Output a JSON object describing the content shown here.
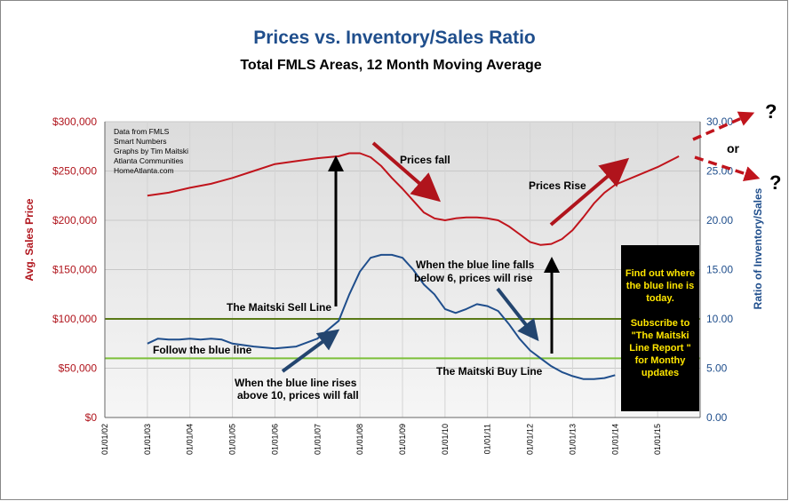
{
  "chart_data": {
    "type": "line",
    "title": "Prices vs. Inventory/Sales Ratio",
    "subtitle": "Total FMLS Areas,  12 Month Moving Average",
    "ylabel_left": "Avg. Sales Price",
    "ylabel_right": "Ratio of Inventory/Sales",
    "ylim_left": [
      0,
      300000
    ],
    "ylim_right": [
      0,
      30
    ],
    "left_ticks": [
      "$0",
      "$50,000",
      "$100,000",
      "$150,000",
      "$200,000",
      "$250,000",
      "$300,000"
    ],
    "right_ticks": [
      "0.00",
      "5.00",
      "10.00",
      "15.00",
      "20.00",
      "25.00",
      "30.00"
    ],
    "x_ticks": [
      "01/01/02",
      "01/01/03",
      "01/01/04",
      "01/01/05",
      "01/01/06",
      "01/01/07",
      "01/01/08",
      "01/01/09",
      "01/01/10",
      "01/01/11",
      "01/01/12",
      "01/01/13",
      "01/01/14",
      "01/01/15"
    ],
    "series": [
      {
        "name": "Avg. Sales Price",
        "axis": "left",
        "color": "#c0141c",
        "x": [
          2003.0,
          2003.5,
          2004.0,
          2004.5,
          2005.0,
          2005.5,
          2006.0,
          2006.5,
          2007.0,
          2007.5,
          2007.75,
          2008.0,
          2008.25,
          2008.5,
          2008.75,
          2009.0,
          2009.25,
          2009.5,
          2009.75,
          2010.0,
          2010.25,
          2010.5,
          2010.75,
          2011.0,
          2011.25,
          2011.5,
          2011.75,
          2012.0,
          2012.25,
          2012.5,
          2012.75,
          2013.0,
          2013.25,
          2013.5,
          2013.75,
          2014.0,
          2014.5,
          2015.0,
          2015.5
        ],
        "values": [
          225000,
          228000,
          233000,
          237000,
          243000,
          250000,
          257000,
          260000,
          263000,
          265000,
          268000,
          268000,
          264000,
          255000,
          243000,
          232000,
          220000,
          208000,
          202000,
          200000,
          202000,
          203000,
          203000,
          202000,
          200000,
          194000,
          186000,
          178000,
          175000,
          176000,
          181000,
          190000,
          203000,
          217000,
          228000,
          236000,
          245000,
          254000,
          265000
        ]
      },
      {
        "name": "Ratio of Inventory/Sales",
        "axis": "right",
        "color": "#1f4e8c",
        "x": [
          2003.0,
          2003.25,
          2003.5,
          2003.75,
          2004.0,
          2004.25,
          2004.5,
          2004.75,
          2005.0,
          2005.5,
          2006.0,
          2006.5,
          2007.0,
          2007.5,
          2007.75,
          2008.0,
          2008.25,
          2008.5,
          2008.75,
          2009.0,
          2009.25,
          2009.5,
          2009.75,
          2010.0,
          2010.25,
          2010.5,
          2010.75,
          2011.0,
          2011.25,
          2011.5,
          2011.75,
          2012.0,
          2012.25,
          2012.5,
          2012.75,
          2013.0,
          2013.25,
          2013.5,
          2013.75,
          2014.0
        ],
        "values": [
          7.5,
          8.0,
          7.9,
          7.9,
          8.0,
          7.9,
          8.0,
          7.9,
          7.5,
          7.2,
          7.0,
          7.2,
          8.0,
          9.8,
          12.5,
          14.8,
          16.2,
          16.5,
          16.5,
          16.2,
          15.0,
          13.5,
          12.5,
          11.0,
          10.6,
          11.0,
          11.5,
          11.3,
          10.8,
          9.5,
          8.0,
          6.8,
          6.0,
          5.2,
          4.6,
          4.2,
          3.9,
          3.9,
          4.0,
          4.3
        ]
      }
    ],
    "reference_lines": [
      {
        "label": "The Maitski Sell Line",
        "axis": "right",
        "value": 10,
        "color": "#5a7a18"
      },
      {
        "label": "The Maitski Buy Line",
        "axis": "right",
        "value": 6,
        "color": "#7cbf3a"
      }
    ],
    "grid": true,
    "plot_background": "#e8e8e8",
    "source_note": [
      "Data from FMLS",
      "Smart Numbers",
      "Graphs by Tim Maitski",
      "Atlanta Communities",
      "HomeAtlanta.com"
    ],
    "annotations": {
      "prices_fall": "Prices fall",
      "prices_rise": "Prices Rise",
      "follow": "Follow the blue line",
      "rises_1": "When the blue line rises",
      "rises_2": "above 10, prices will fall",
      "falls_1": "When the blue line falls",
      "falls_2": "below 6, prices will rise",
      "or": "or",
      "q1": "?",
      "q2": "?"
    },
    "callout": {
      "lines": [
        "Find out where",
        "the blue line is",
        "today.",
        "",
        "Subscribe to",
        "\"The Maitski",
        "Line Report \"",
        "for Monthy",
        "updates"
      ],
      "background": "#000000",
      "text_color": "#ffe600"
    }
  }
}
